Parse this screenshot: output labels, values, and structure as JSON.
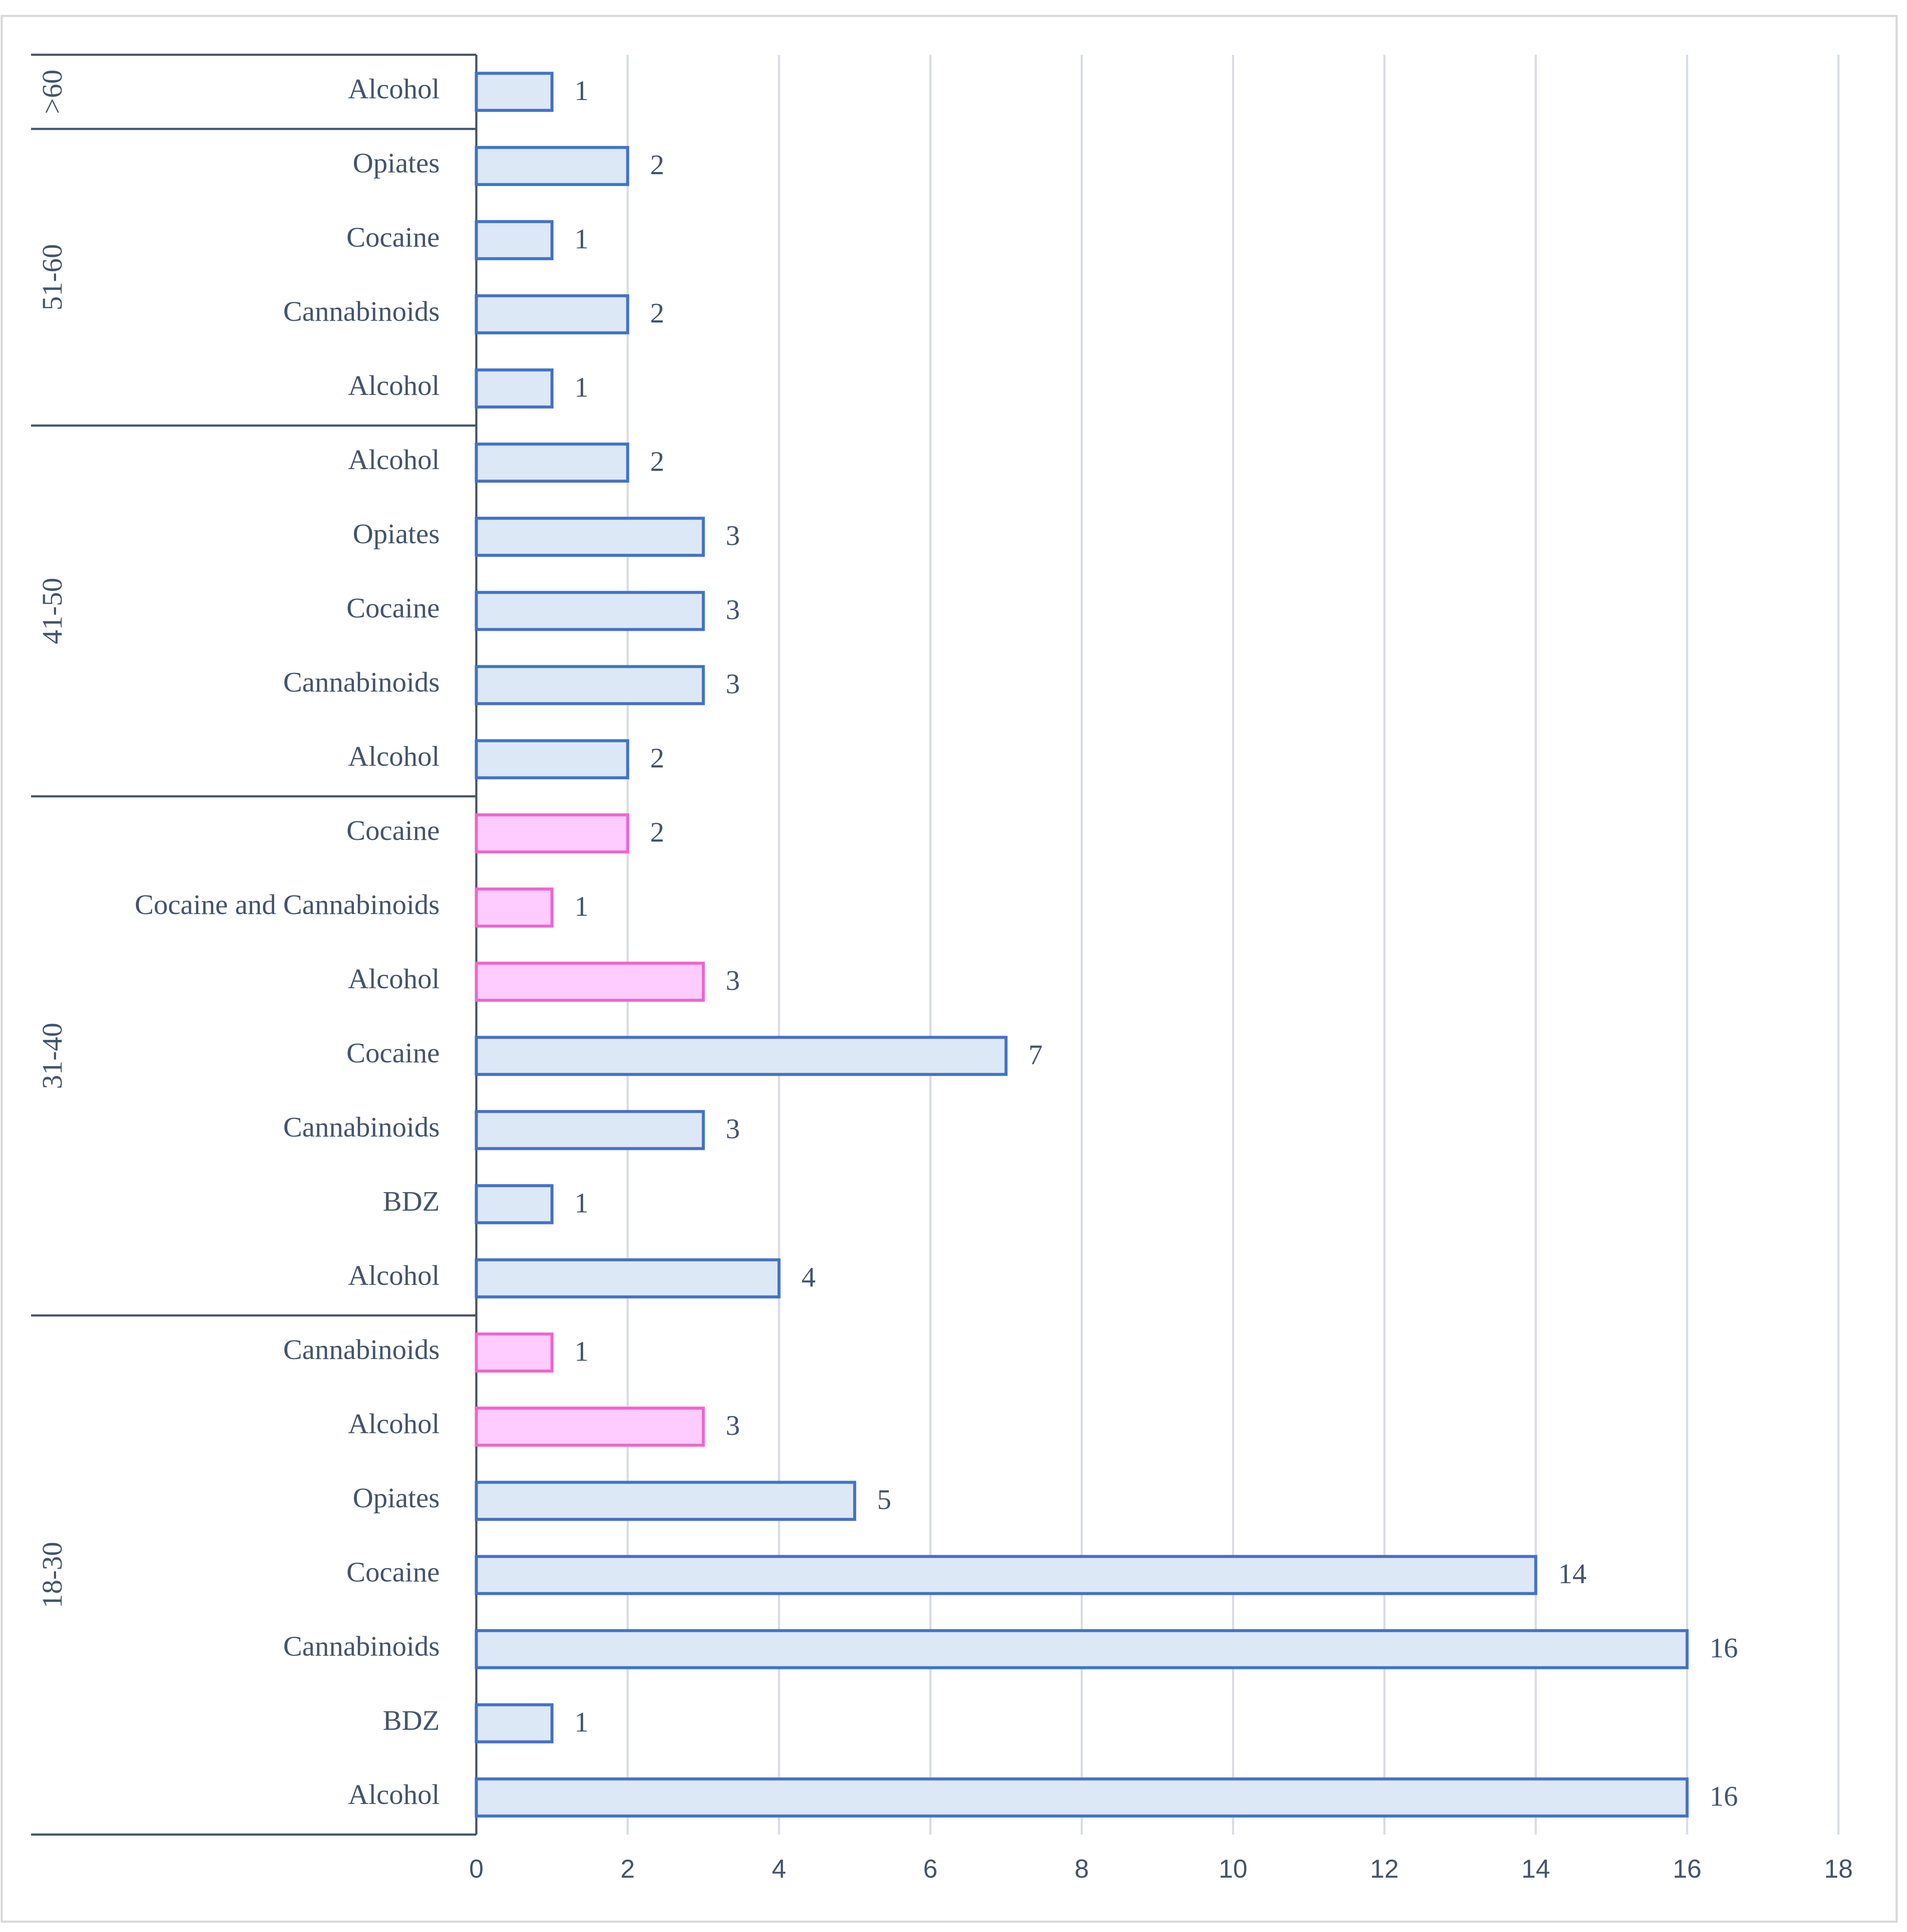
{
  "chart_data": {
    "type": "bar",
    "orientation": "horizontal",
    "title": "",
    "xlabel": "",
    "ylabel": "",
    "xlim": [
      0,
      18
    ],
    "x_ticks": [
      0,
      2,
      4,
      6,
      8,
      10,
      12,
      14,
      16,
      18
    ],
    "x_tick_labels": [
      "0",
      "2",
      "4",
      "6",
      "8",
      "10",
      "12",
      "14",
      "16",
      "18"
    ],
    "grid": "vertical",
    "legend": "none",
    "colors": {
      "blue_fill": "#dce8f6",
      "blue_stroke": "#4472c4",
      "pink_fill": "#ffccff",
      "pink_stroke": "#ee66cc",
      "grid": "#d9dce6",
      "axis": "#44546a"
    },
    "groups": [
      {
        "name": "18-30",
        "bars": [
          {
            "label": "Alcohol",
            "value": 16,
            "color": "blue"
          },
          {
            "label": "BDZ",
            "value": 1,
            "color": "blue"
          },
          {
            "label": "Cannabinoids",
            "value": 16,
            "color": "blue"
          },
          {
            "label": "Cocaine",
            "value": 14,
            "color": "blue"
          },
          {
            "label": "Opiates",
            "value": 5,
            "color": "blue"
          },
          {
            "label": "Alcohol",
            "value": 3,
            "color": "pink"
          },
          {
            "label": "Cannabinoids",
            "value": 1,
            "color": "pink"
          }
        ]
      },
      {
        "name": "31-40",
        "bars": [
          {
            "label": "Alcohol",
            "value": 4,
            "color": "blue"
          },
          {
            "label": "BDZ",
            "value": 1,
            "color": "blue"
          },
          {
            "label": "Cannabinoids",
            "value": 3,
            "color": "blue"
          },
          {
            "label": "Cocaine",
            "value": 7,
            "color": "blue"
          },
          {
            "label": "Alcohol",
            "value": 3,
            "color": "pink"
          },
          {
            "label": "Cocaine and Cannabinoids",
            "value": 1,
            "color": "pink"
          },
          {
            "label": "Cocaine",
            "value": 2,
            "color": "pink"
          }
        ]
      },
      {
        "name": "41-50",
        "bars": [
          {
            "label": "Alcohol",
            "value": 2,
            "color": "blue"
          },
          {
            "label": "Cannabinoids",
            "value": 3,
            "color": "blue"
          },
          {
            "label": "Cocaine",
            "value": 3,
            "color": "blue"
          },
          {
            "label": "Opiates",
            "value": 3,
            "color": "blue"
          },
          {
            "label": "Alcohol",
            "value": 2,
            "color": "blue"
          }
        ]
      },
      {
        "name": "51-60",
        "bars": [
          {
            "label": "Alcohol",
            "value": 1,
            "color": "blue"
          },
          {
            "label": "Cannabinoids",
            "value": 2,
            "color": "blue"
          },
          {
            "label": "Cocaine",
            "value": 1,
            "color": "blue"
          },
          {
            "label": "Opiates",
            "value": 2,
            "color": "blue"
          }
        ]
      },
      {
        "name": ">60",
        "bars": [
          {
            "label": "Alcohol",
            "value": 1,
            "color": "blue"
          }
        ]
      }
    ]
  }
}
